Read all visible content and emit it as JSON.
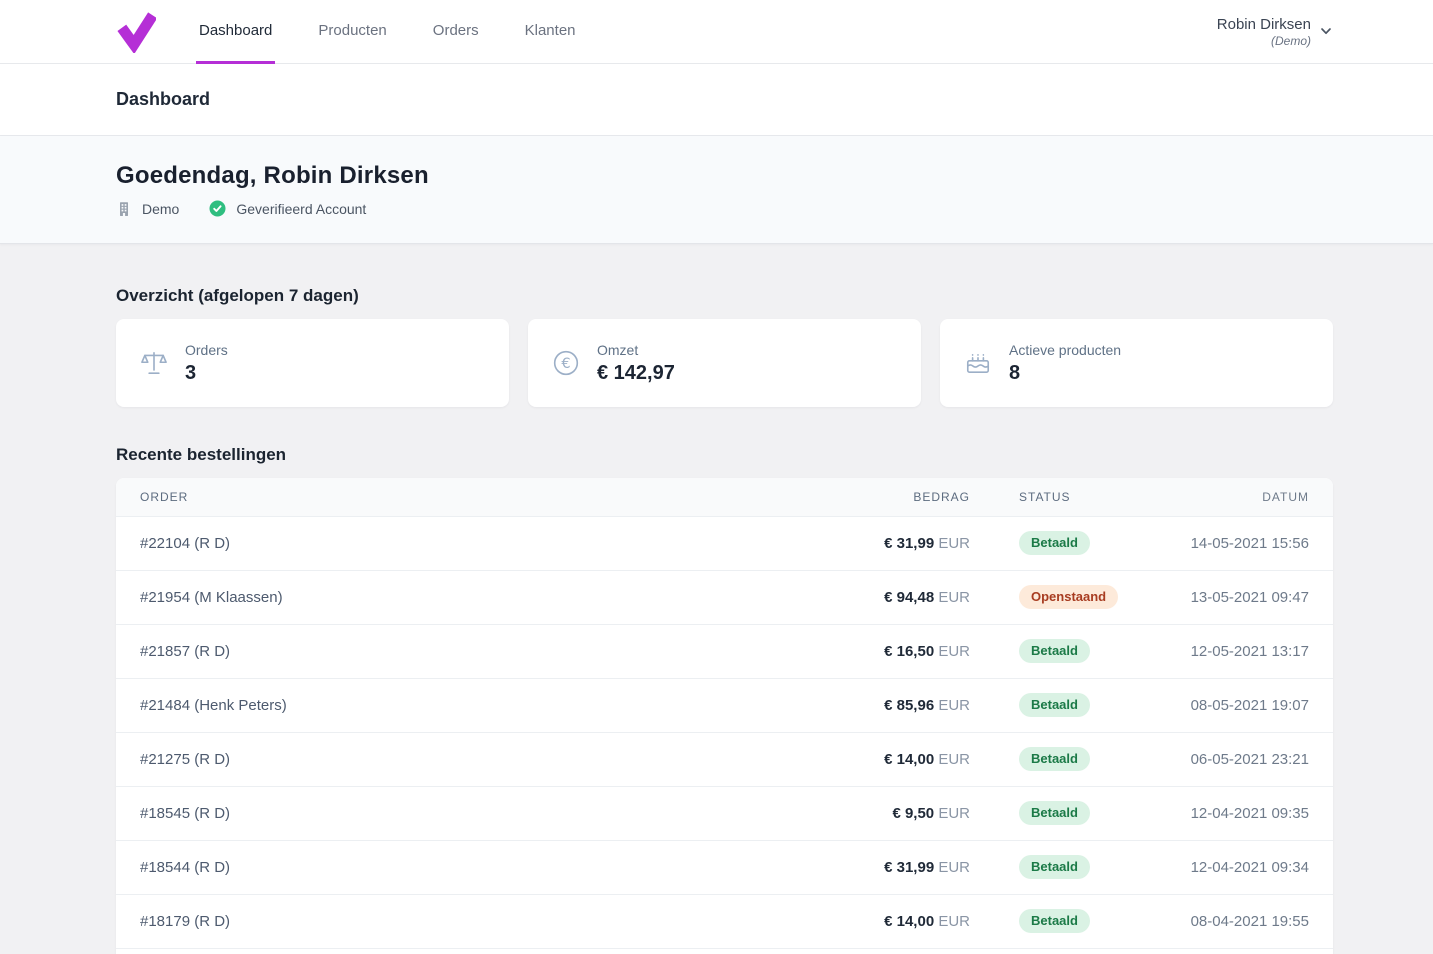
{
  "brand": {
    "accent_color": "#b52fd6",
    "logo": "v-checkmark"
  },
  "nav": {
    "items": [
      {
        "label": "Dashboard",
        "active": true
      },
      {
        "label": "Producten",
        "active": false
      },
      {
        "label": "Orders",
        "active": false
      },
      {
        "label": "Klanten",
        "active": false
      }
    ]
  },
  "user": {
    "name": "Robin Dirksen",
    "subtitle": "(Demo)"
  },
  "page": {
    "title": "Dashboard"
  },
  "greeting": {
    "title": "Goedendag, Robin Dirksen",
    "badges": [
      {
        "icon": "building-icon",
        "label": "Demo"
      },
      {
        "icon": "check-circle-icon",
        "label": "Geverifieerd Account",
        "icon_color": "#2fbe80"
      }
    ]
  },
  "overview": {
    "heading": "Overzicht (afgelopen 7 dagen)",
    "cards": [
      {
        "icon": "scale-icon",
        "label": "Orders",
        "value": "3"
      },
      {
        "icon": "euro-circle-icon",
        "label": "Omzet",
        "value": "€ 142,97"
      },
      {
        "icon": "cake-icon",
        "label": "Actieve producten",
        "value": "8"
      }
    ]
  },
  "orders": {
    "heading": "Recente bestellingen",
    "columns": [
      "Order",
      "Bedrag",
      "Status",
      "Datum"
    ],
    "status_colors": {
      "paid": {
        "bg": "#daf2e4",
        "text": "#1b7a47"
      },
      "open": {
        "bg": "#fdeada",
        "text": "#a83c21"
      }
    },
    "rows": [
      {
        "order": "#22104 (R D)",
        "amount": "€ 31,99",
        "currency": "EUR",
        "status": "Betaald",
        "status_type": "paid",
        "date": "14-05-2021 15:56"
      },
      {
        "order": "#21954 (M Klaassen)",
        "amount": "€ 94,48",
        "currency": "EUR",
        "status": "Openstaand",
        "status_type": "open",
        "date": "13-05-2021 09:47"
      },
      {
        "order": "#21857 (R D)",
        "amount": "€ 16,50",
        "currency": "EUR",
        "status": "Betaald",
        "status_type": "paid",
        "date": "12-05-2021 13:17"
      },
      {
        "order": "#21484 (Henk Peters)",
        "amount": "€ 85,96",
        "currency": "EUR",
        "status": "Betaald",
        "status_type": "paid",
        "date": "08-05-2021 19:07"
      },
      {
        "order": "#21275 (R D)",
        "amount": "€ 14,00",
        "currency": "EUR",
        "status": "Betaald",
        "status_type": "paid",
        "date": "06-05-2021 23:21"
      },
      {
        "order": "#18545 (R D)",
        "amount": "€ 9,50",
        "currency": "EUR",
        "status": "Betaald",
        "status_type": "paid",
        "date": "12-04-2021 09:35"
      },
      {
        "order": "#18544 (R D)",
        "amount": "€ 31,99",
        "currency": "EUR",
        "status": "Betaald",
        "status_type": "paid",
        "date": "12-04-2021 09:34"
      },
      {
        "order": "#18179 (R D)",
        "amount": "€ 14,00",
        "currency": "EUR",
        "status": "Betaald",
        "status_type": "paid",
        "date": "08-04-2021 19:55"
      }
    ]
  }
}
